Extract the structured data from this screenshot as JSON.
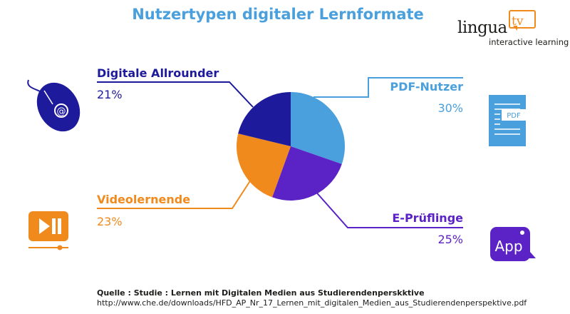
{
  "chart_data": {
    "type": "pie",
    "title": "Nutzertypen digitaler Lernformate",
    "slices": [
      {
        "label": "PDF-Nutzer",
        "value": 30,
        "display": "30%",
        "color": "#4aa0dc"
      },
      {
        "label": "E-Prüflinge",
        "value": 25,
        "display": "25%",
        "color": "#5b22c5"
      },
      {
        "label": "Videolernende",
        "value": 23,
        "display": "23%",
        "color": "#f18a1c"
      },
      {
        "label": "Digitale Allrounder",
        "value": 21,
        "display": "21%",
        "color": "#1e1a9c"
      }
    ]
  },
  "logo": {
    "main": "lingua",
    "accent": "tv",
    "sub": "interactive learning"
  },
  "icons": {
    "allrounder": "mouse-at-icon",
    "pdf": "pdf-document-icon",
    "video": "video-play-pause-icon",
    "app": "app-icon"
  },
  "app_icon_text": "App",
  "pdf_icon_text": "PDF",
  "source": {
    "label": "Quelle : Studie : Lernen mit Digitalen Medien aus Studierendenperskktive",
    "url": "http://www.che.de/downloads/HFD_AP_Nr_17_Lernen_mit_digitalen_Medien_aus_Studierendenperspektive.pdf"
  }
}
